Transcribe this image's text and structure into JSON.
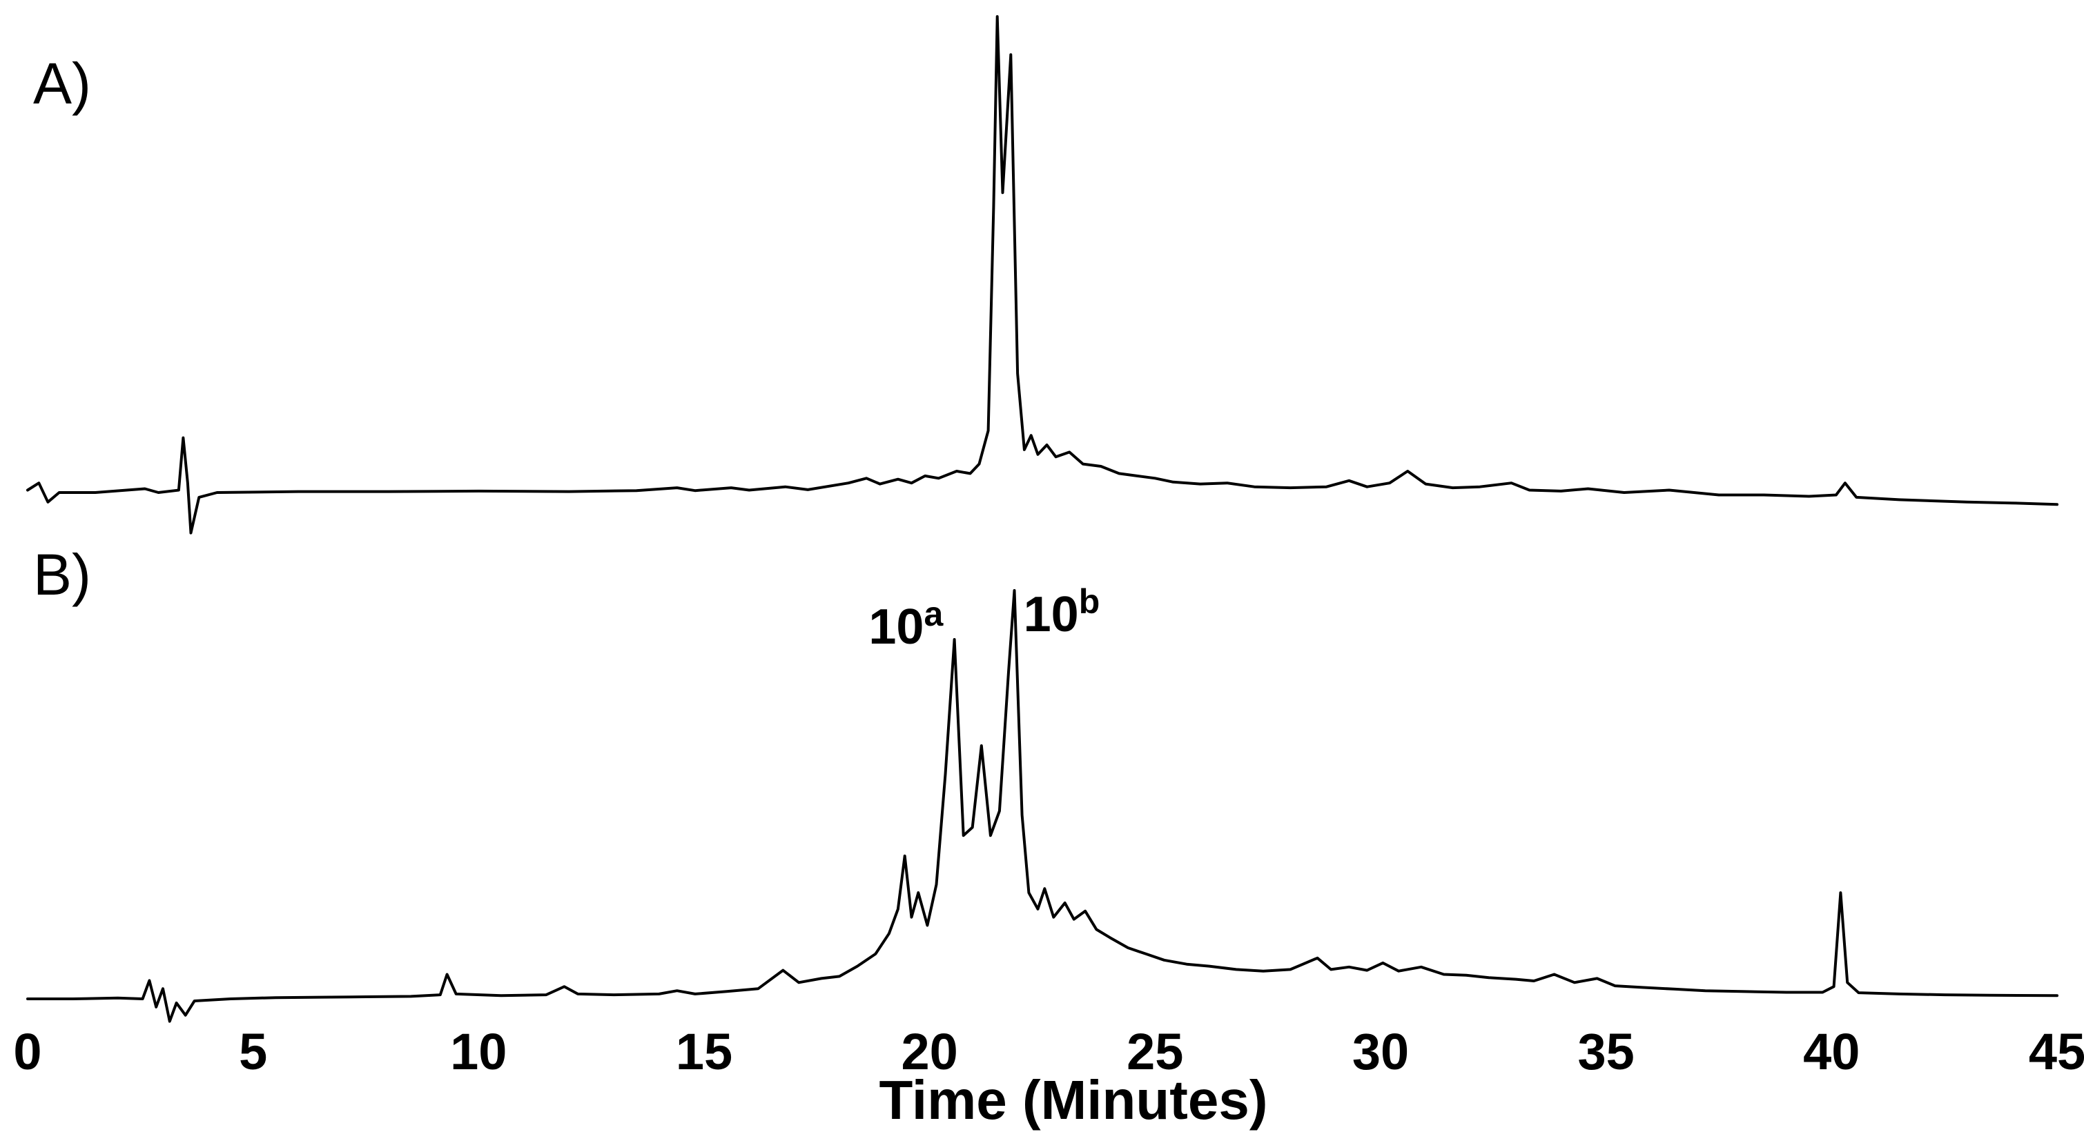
{
  "figure": {
    "background_color": "#ffffff",
    "line_color": "#000000"
  },
  "chart_data": {
    "type": "line",
    "title": "",
    "xlabel": "Time (Minutes)",
    "ylabel": "",
    "xlim": [
      0,
      45
    ],
    "x_ticks": [
      0,
      5,
      10,
      15,
      20,
      25,
      30,
      35,
      40,
      45
    ],
    "grid": false,
    "legend": false,
    "description": "Two stacked HPLC chromatogram traces sharing one time axis; intensity normalized 0-1 per panel",
    "panels": [
      {
        "label": "A)",
        "series": "A"
      },
      {
        "label": "B)",
        "series": "B"
      }
    ],
    "series": [
      {
        "name": "A",
        "points": [
          [
            0,
            0.005
          ],
          [
            0.25,
            0.02
          ],
          [
            0.45,
            -0.02
          ],
          [
            0.7,
            0
          ],
          [
            1.5,
            0
          ],
          [
            2.6,
            0.008
          ],
          [
            2.9,
            0
          ],
          [
            3.35,
            0.005
          ],
          [
            3.45,
            0.115
          ],
          [
            3.55,
            0.02
          ],
          [
            3.62,
            -0.085
          ],
          [
            3.8,
            -0.01
          ],
          [
            4.2,
            0
          ],
          [
            6,
            0.002
          ],
          [
            8,
            0.002
          ],
          [
            10,
            0.003
          ],
          [
            12,
            0.002
          ],
          [
            13.5,
            0.004
          ],
          [
            14.4,
            0.01
          ],
          [
            14.8,
            0.004
          ],
          [
            15.6,
            0.01
          ],
          [
            16,
            0.005
          ],
          [
            16.8,
            0.012
          ],
          [
            17.3,
            0.006
          ],
          [
            18.2,
            0.02
          ],
          [
            18.6,
            0.03
          ],
          [
            18.9,
            0.018
          ],
          [
            19.3,
            0.028
          ],
          [
            19.6,
            0.02
          ],
          [
            19.9,
            0.035
          ],
          [
            20.2,
            0.03
          ],
          [
            20.6,
            0.045
          ],
          [
            20.9,
            0.04
          ],
          [
            21.1,
            0.06
          ],
          [
            21.3,
            0.13
          ],
          [
            21.42,
            0.6
          ],
          [
            21.5,
            1.0
          ],
          [
            21.62,
            0.63
          ],
          [
            21.8,
            0.92
          ],
          [
            21.95,
            0.25
          ],
          [
            22.1,
            0.09
          ],
          [
            22.25,
            0.12
          ],
          [
            22.4,
            0.08
          ],
          [
            22.6,
            0.1
          ],
          [
            22.8,
            0.075
          ],
          [
            23.1,
            0.085
          ],
          [
            23.4,
            0.06
          ],
          [
            23.8,
            0.055
          ],
          [
            24.2,
            0.04
          ],
          [
            24.6,
            0.035
          ],
          [
            25,
            0.03
          ],
          [
            25.4,
            0.022
          ],
          [
            26,
            0.018
          ],
          [
            26.6,
            0.02
          ],
          [
            27.2,
            0.012
          ],
          [
            28,
            0.01
          ],
          [
            28.8,
            0.012
          ],
          [
            29.3,
            0.025
          ],
          [
            29.7,
            0.012
          ],
          [
            30.2,
            0.02
          ],
          [
            30.6,
            0.045
          ],
          [
            31,
            0.018
          ],
          [
            31.6,
            0.01
          ],
          [
            32.2,
            0.012
          ],
          [
            32.9,
            0.02
          ],
          [
            33.3,
            0.005
          ],
          [
            34,
            0.003
          ],
          [
            34.6,
            0.008
          ],
          [
            35.4,
            0
          ],
          [
            36.4,
            0.005
          ],
          [
            37.5,
            -0.005
          ],
          [
            38.5,
            -0.005
          ],
          [
            39.5,
            -0.008
          ],
          [
            40.1,
            -0.005
          ],
          [
            40.3,
            0.02
          ],
          [
            40.55,
            -0.01
          ],
          [
            41.5,
            -0.015
          ],
          [
            43,
            -0.02
          ],
          [
            44,
            -0.022
          ],
          [
            45,
            -0.025
          ]
        ]
      },
      {
        "name": "B",
        "points": [
          [
            0,
            0
          ],
          [
            1,
            0
          ],
          [
            2,
            0.002
          ],
          [
            2.55,
            0
          ],
          [
            2.7,
            0.045
          ],
          [
            2.85,
            -0.02
          ],
          [
            3.0,
            0.025
          ],
          [
            3.15,
            -0.055
          ],
          [
            3.3,
            -0.01
          ],
          [
            3.5,
            -0.04
          ],
          [
            3.7,
            -0.005
          ],
          [
            4.5,
            0
          ],
          [
            5.5,
            0.003
          ],
          [
            6.5,
            0.004
          ],
          [
            7.5,
            0.005
          ],
          [
            8.5,
            0.006
          ],
          [
            9.15,
            0.01
          ],
          [
            9.3,
            0.06
          ],
          [
            9.5,
            0.012
          ],
          [
            10.5,
            0.008
          ],
          [
            11.5,
            0.01
          ],
          [
            11.9,
            0.03
          ],
          [
            12.2,
            0.012
          ],
          [
            13,
            0.01
          ],
          [
            14,
            0.012
          ],
          [
            14.4,
            0.02
          ],
          [
            14.8,
            0.012
          ],
          [
            15.5,
            0.018
          ],
          [
            16.2,
            0.025
          ],
          [
            16.75,
            0.07
          ],
          [
            17.1,
            0.04
          ],
          [
            17.6,
            0.05
          ],
          [
            18,
            0.055
          ],
          [
            18.4,
            0.08
          ],
          [
            18.8,
            0.11
          ],
          [
            19.1,
            0.16
          ],
          [
            19.3,
            0.22
          ],
          [
            19.45,
            0.35
          ],
          [
            19.6,
            0.2
          ],
          [
            19.75,
            0.26
          ],
          [
            19.95,
            0.18
          ],
          [
            20.15,
            0.28
          ],
          [
            20.35,
            0.55
          ],
          [
            20.55,
            0.88
          ],
          [
            20.75,
            0.4
          ],
          [
            20.95,
            0.42
          ],
          [
            21.15,
            0.62
          ],
          [
            21.35,
            0.4
          ],
          [
            21.55,
            0.46
          ],
          [
            21.75,
            0.8
          ],
          [
            21.88,
            1.0
          ],
          [
            22.05,
            0.45
          ],
          [
            22.2,
            0.26
          ],
          [
            22.4,
            0.22
          ],
          [
            22.55,
            0.27
          ],
          [
            22.75,
            0.2
          ],
          [
            23.0,
            0.235
          ],
          [
            23.2,
            0.195
          ],
          [
            23.45,
            0.215
          ],
          [
            23.7,
            0.17
          ],
          [
            24,
            0.15
          ],
          [
            24.4,
            0.125
          ],
          [
            24.8,
            0.11
          ],
          [
            25.2,
            0.095
          ],
          [
            25.7,
            0.085
          ],
          [
            26.2,
            0.08
          ],
          [
            26.8,
            0.072
          ],
          [
            27.4,
            0.068
          ],
          [
            28,
            0.072
          ],
          [
            28.6,
            0.1
          ],
          [
            28.9,
            0.072
          ],
          [
            29.3,
            0.078
          ],
          [
            29.7,
            0.07
          ],
          [
            30.05,
            0.088
          ],
          [
            30.4,
            0.068
          ],
          [
            30.9,
            0.078
          ],
          [
            31.4,
            0.06
          ],
          [
            31.9,
            0.058
          ],
          [
            32.4,
            0.052
          ],
          [
            33,
            0.048
          ],
          [
            33.4,
            0.044
          ],
          [
            33.85,
            0.06
          ],
          [
            34.3,
            0.04
          ],
          [
            34.8,
            0.05
          ],
          [
            35.2,
            0.032
          ],
          [
            35.8,
            0.028
          ],
          [
            36.5,
            0.024
          ],
          [
            37.2,
            0.02
          ],
          [
            38,
            0.018
          ],
          [
            39,
            0.016
          ],
          [
            39.8,
            0.016
          ],
          [
            40.05,
            0.03
          ],
          [
            40.2,
            0.26
          ],
          [
            40.35,
            0.04
          ],
          [
            40.6,
            0.015
          ],
          [
            41.5,
            0.012
          ],
          [
            42.5,
            0.01
          ],
          [
            43.5,
            0.009
          ],
          [
            45,
            0.008
          ]
        ]
      }
    ],
    "annotations": [
      {
        "text_base": "10",
        "text_sup": "a",
        "series": "B",
        "t": 20.3,
        "y_frac": 0.87,
        "anchor": "end"
      },
      {
        "text_base": "10",
        "text_sup": "b",
        "series": "B",
        "t": 22.08,
        "y_frac": 0.9,
        "anchor": "start"
      }
    ]
  }
}
